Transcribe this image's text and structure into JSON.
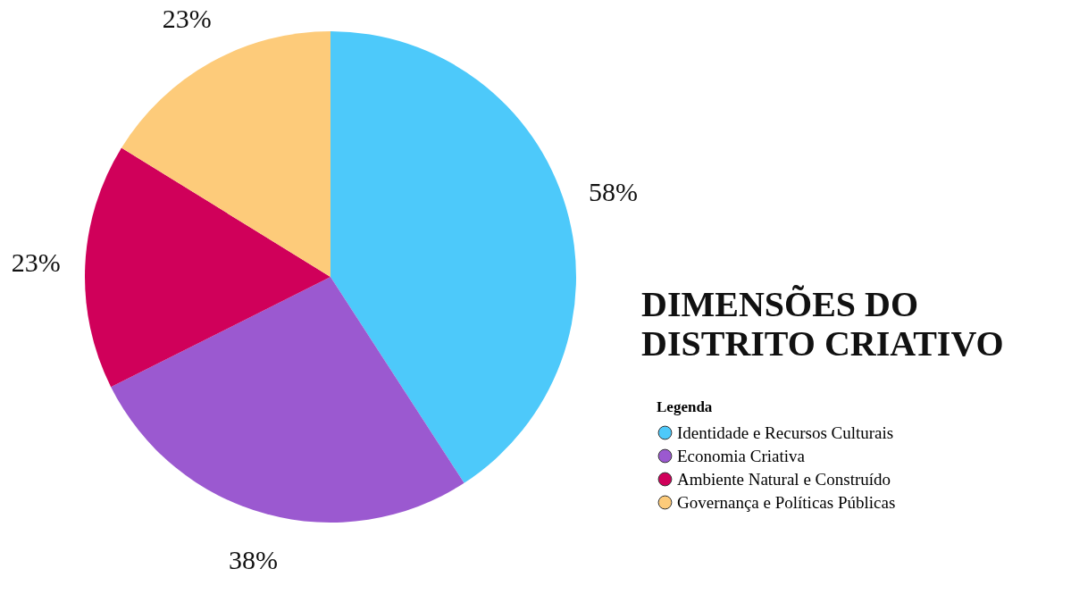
{
  "chart_data": {
    "type": "pie",
    "title": "DIMENSÕES DO DISTRITO CRIATIVO",
    "legend_title": "Legenda",
    "categories": [
      "Identidade e Recursos Culturais",
      "Economia Criativa",
      "Ambiente Natural e Construído",
      "Governança e Políticas Públicas"
    ],
    "values": [
      58,
      38,
      23,
      23
    ],
    "value_labels": [
      "58%",
      "38%",
      "23%",
      "23%"
    ],
    "colors": [
      "#4dc9fa",
      "#9b59d0",
      "#d0005a",
      "#fdcb7a"
    ],
    "legend": "right"
  }
}
